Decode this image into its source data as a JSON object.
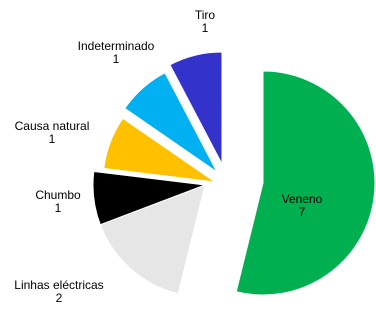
{
  "chart_data": {
    "type": "pie",
    "title": "",
    "slices": [
      {
        "label": "Veneno",
        "value": 7,
        "value_label": "7",
        "color": "#00b050",
        "label_color": "#ffffff"
      },
      {
        "label": "Linhas eléctricas",
        "value": 2,
        "value_label": "2",
        "color": "#e6e6e6",
        "label_color": "#000000"
      },
      {
        "label": "Chumbo",
        "value": 1,
        "value_label": "1",
        "color": "#000000",
        "label_color": "#000000"
      },
      {
        "label": "Causa natural",
        "value": 1,
        "value_label": "1",
        "color": "#ffc000",
        "label_color": "#000000"
      },
      {
        "label": "Indeterminado",
        "value": 1,
        "value_label": "1",
        "color": "#00b0f0",
        "label_color": "#000000"
      },
      {
        "label": "Tiro",
        "value": 1,
        "value_label": "1",
        "color": "#3333cc",
        "label_color": "#000000"
      }
    ],
    "legend": "none",
    "exploded": true
  }
}
